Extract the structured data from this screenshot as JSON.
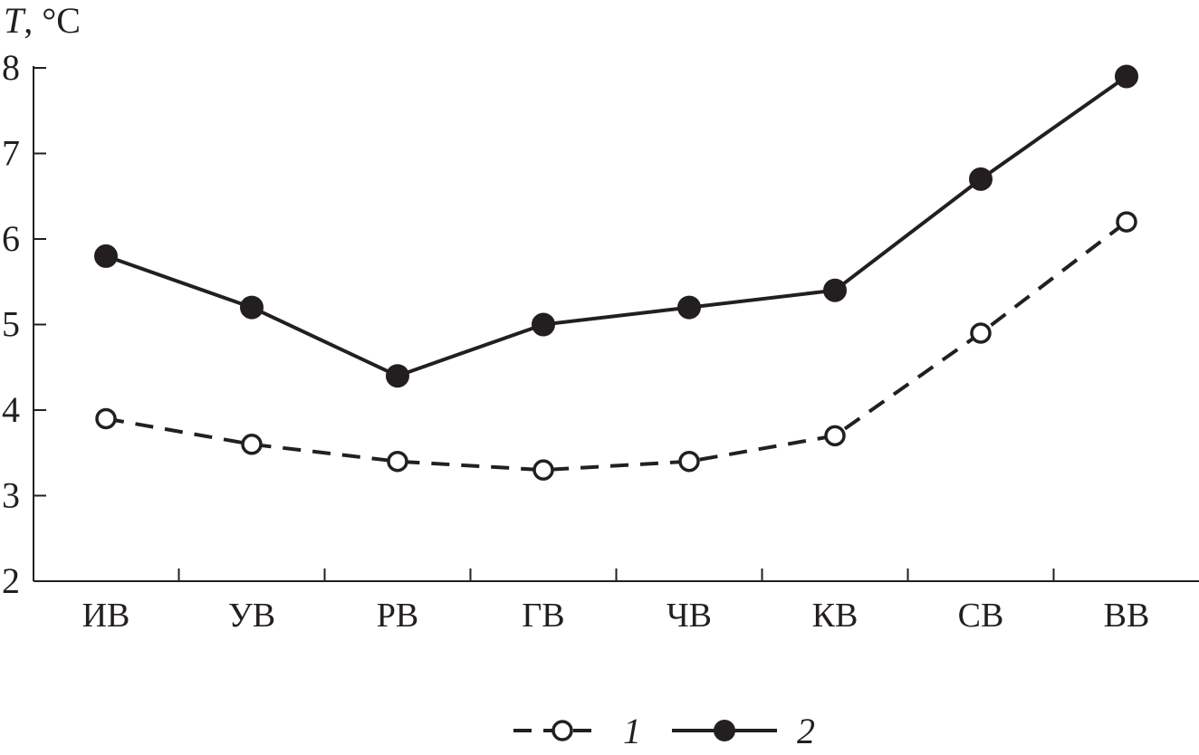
{
  "chart_data": {
    "type": "line",
    "ylabel": "T, °C",
    "ylabel_var": "T",
    "ylabel_unit": ", °C",
    "xlabel": "",
    "ylim": [
      2,
      8
    ],
    "yticks": [
      2,
      3,
      4,
      5,
      6,
      7,
      8
    ],
    "categories": [
      "ИВ",
      "УВ",
      "РВ",
      "ГВ",
      "ЧВ",
      "КВ",
      "СВ",
      "ВВ"
    ],
    "series": [
      {
        "name": "1",
        "style": "dashed",
        "marker": "open-circle",
        "values": [
          3.9,
          3.6,
          3.4,
          3.3,
          3.4,
          3.7,
          4.9,
          6.2
        ]
      },
      {
        "name": "2",
        "style": "solid",
        "marker": "filled-circle",
        "values": [
          5.8,
          5.2,
          4.4,
          5.0,
          5.2,
          5.4,
          6.7,
          7.9
        ]
      }
    ],
    "legend_position": "bottom-center",
    "grid": false,
    "colors": {
      "ink": "#231f20",
      "background": "#ffffff"
    }
  }
}
